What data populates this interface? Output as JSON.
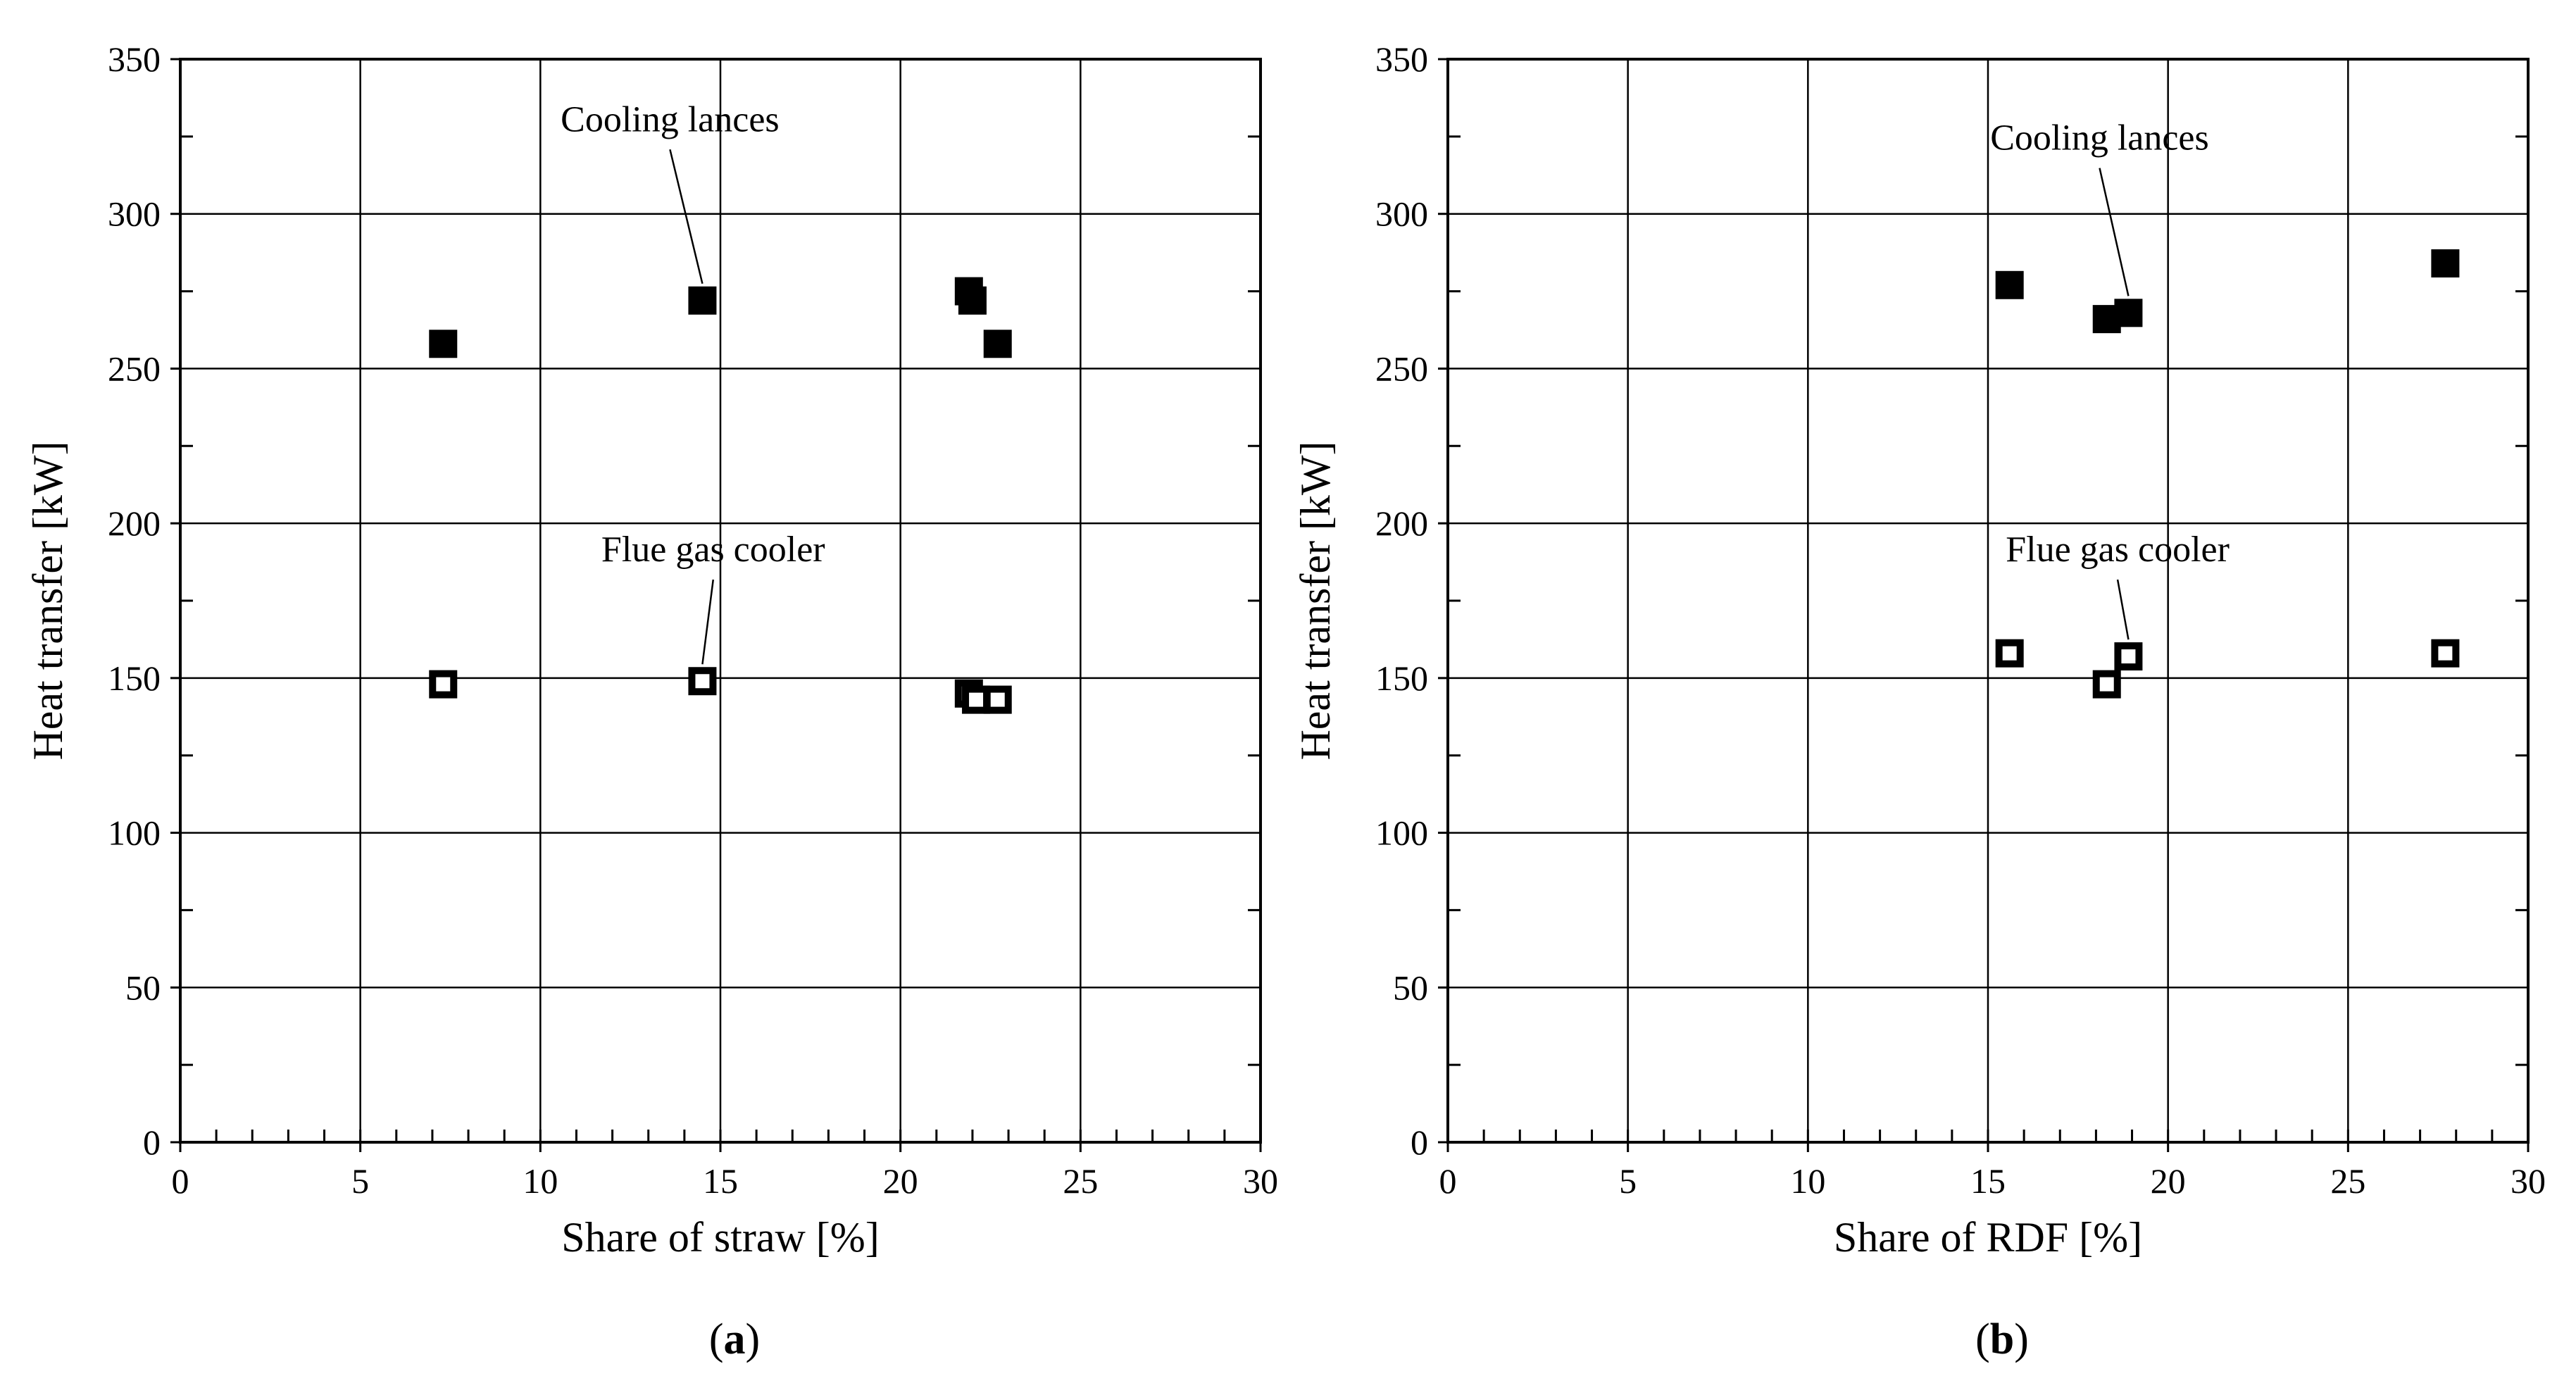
{
  "chart_data": [
    {
      "type": "scatter",
      "panel_label_open": "(",
      "panel_label_letter": "a",
      "panel_label_close": ")",
      "xlabel": "Share of straw [%]",
      "ylabel": "Heat transfer [kW]",
      "xlim": [
        0,
        30
      ],
      "ylim": [
        0,
        350
      ],
      "x_ticks": [
        0,
        5,
        10,
        15,
        20,
        25,
        30
      ],
      "y_ticks": [
        0,
        50,
        100,
        150,
        200,
        250,
        300,
        350
      ],
      "grid": true,
      "series": [
        {
          "marker": "filled-square",
          "color": "#000000",
          "points": [
            {
              "x": 7.3,
              "y": 258
            },
            {
              "x": 14.5,
              "y": 272
            },
            {
              "x": 21.9,
              "y": 275
            },
            {
              "x": 22.0,
              "y": 272
            },
            {
              "x": 22.7,
              "y": 258
            }
          ]
        },
        {
          "marker": "open-square",
          "color": "#000000",
          "points": [
            {
              "x": 7.3,
              "y": 148
            },
            {
              "x": 14.5,
              "y": 149
            },
            {
              "x": 21.9,
              "y": 145
            },
            {
              "x": 22.1,
              "y": 143
            },
            {
              "x": 22.7,
              "y": 143
            }
          ]
        }
      ],
      "annotations": [
        {
          "text": "Cooling lances",
          "label_x": 13.6,
          "label_y": 324,
          "point_x": 14.5,
          "point_y": 272
        },
        {
          "text": "Flue gas cooler",
          "label_x": 14.8,
          "label_y": 185,
          "point_x": 14.5,
          "point_y": 149
        }
      ]
    },
    {
      "type": "scatter",
      "panel_label_open": "(",
      "panel_label_letter": "b",
      "panel_label_close": ")",
      "xlabel": "Share of RDF [%]",
      "ylabel": "Heat transfer [kW]",
      "xlim": [
        0,
        30
      ],
      "ylim": [
        0,
        350
      ],
      "x_ticks": [
        0,
        5,
        10,
        15,
        20,
        25,
        30
      ],
      "y_ticks": [
        0,
        50,
        100,
        150,
        200,
        250,
        300,
        350
      ],
      "grid": true,
      "series": [
        {
          "marker": "filled-square",
          "color": "#000000",
          "points": [
            {
              "x": 15.6,
              "y": 277
            },
            {
              "x": 18.3,
              "y": 266
            },
            {
              "x": 18.9,
              "y": 268
            },
            {
              "x": 27.7,
              "y": 284
            }
          ]
        },
        {
          "marker": "open-square",
          "color": "#000000",
          "points": [
            {
              "x": 15.6,
              "y": 158
            },
            {
              "x": 18.3,
              "y": 148
            },
            {
              "x": 18.9,
              "y": 157
            },
            {
              "x": 27.7,
              "y": 158
            }
          ]
        }
      ],
      "annotations": [
        {
          "text": "Cooling lances",
          "label_x": 18.1,
          "label_y": 318,
          "point_x": 18.9,
          "point_y": 268
        },
        {
          "text": "Flue gas cooler",
          "label_x": 18.6,
          "label_y": 185,
          "point_x": 18.9,
          "point_y": 157
        }
      ]
    }
  ]
}
